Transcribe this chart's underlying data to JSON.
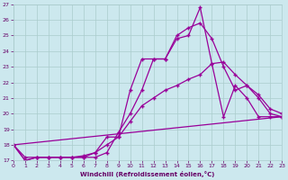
{
  "xlabel": "Windchill (Refroidissement éolien,°C)",
  "bg_color": "#cce8ee",
  "line_color": "#990099",
  "grid_color": "#aacccc",
  "xlim": [
    0,
    23
  ],
  "ylim": [
    17,
    27
  ],
  "yticks": [
    17,
    18,
    19,
    20,
    21,
    22,
    23,
    24,
    25,
    26,
    27
  ],
  "xticks": [
    0,
    1,
    2,
    3,
    4,
    5,
    6,
    7,
    8,
    9,
    10,
    11,
    12,
    13,
    14,
    15,
    16,
    17,
    18,
    19,
    20,
    21,
    22,
    23
  ],
  "line1_x": [
    0,
    1,
    2,
    3,
    4,
    5,
    6,
    7,
    8,
    9,
    10,
    11,
    12,
    13,
    14,
    15,
    16,
    17,
    18,
    19,
    20,
    21,
    22,
    23
  ],
  "line1_y": [
    18.0,
    17.2,
    17.2,
    17.2,
    17.2,
    17.2,
    17.2,
    17.2,
    17.5,
    18.8,
    20.0,
    21.5,
    23.5,
    23.5,
    24.8,
    25.0,
    26.8,
    23.2,
    19.8,
    21.8,
    21.0,
    19.8,
    19.8,
    19.8
  ],
  "line2_x": [
    0,
    1,
    2,
    3,
    4,
    5,
    6,
    7,
    8,
    9,
    10,
    11,
    12,
    13,
    14,
    15,
    16,
    17,
    18,
    19,
    20,
    21,
    22,
    23
  ],
  "line2_y": [
    18.0,
    17.0,
    17.2,
    17.2,
    17.2,
    17.2,
    17.2,
    17.5,
    18.5,
    18.5,
    21.5,
    23.5,
    23.5,
    23.5,
    25.0,
    25.5,
    25.8,
    24.8,
    23.0,
    21.5,
    21.8,
    21.0,
    20.0,
    19.8
  ],
  "line3_x": [
    0,
    1,
    2,
    3,
    4,
    5,
    6,
    7,
    8,
    9,
    10,
    11,
    12,
    13,
    14,
    15,
    16,
    17,
    18,
    19,
    20,
    21,
    22,
    23
  ],
  "line3_y": [
    18.0,
    17.0,
    17.2,
    17.2,
    17.2,
    17.2,
    17.3,
    17.5,
    18.0,
    18.5,
    19.5,
    20.5,
    21.0,
    21.5,
    21.8,
    22.2,
    22.5,
    23.2,
    23.3,
    22.5,
    21.8,
    21.2,
    20.3,
    20.0
  ],
  "line4_x": [
    0,
    23
  ],
  "line4_y": [
    18.0,
    19.8
  ],
  "marker": "+"
}
